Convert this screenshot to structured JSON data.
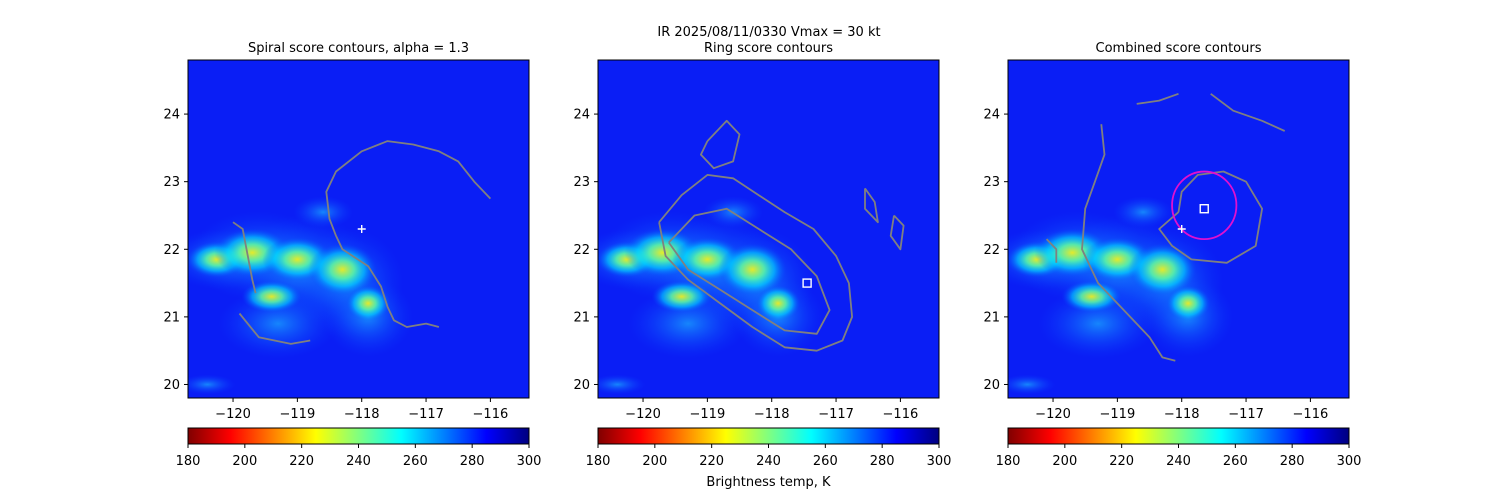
{
  "figure": {
    "suptitle_line1": "IR  2025/08/11/0330    Vmax = 30 kt",
    "colorbar_label": "Brightness temp, K"
  },
  "colormap": {
    "name": "jet_r",
    "stops": [
      "#800000",
      "#ff0000",
      "#ff8000",
      "#ffff00",
      "#80ff80",
      "#00ffff",
      "#0080ff",
      "#0000ff",
      "#000080"
    ]
  },
  "colors": {
    "background": "#0a1ef5",
    "contour": "#808080",
    "marker": "#ffffff",
    "ring": "#e010d0"
  },
  "chart_data": [
    {
      "type": "heatmap",
      "title": "Spiral score contours, alpha =  1.3",
      "xlim": [
        -120.7,
        -115.4
      ],
      "ylim": [
        19.8,
        24.8
      ],
      "xticks": [
        -120,
        -119,
        -118,
        -117,
        -116
      ],
      "yticks": [
        20,
        21,
        22,
        23,
        24
      ],
      "colorbar": {
        "range": [
          180,
          300
        ],
        "ticks": [
          180,
          200,
          220,
          240,
          260,
          280,
          300
        ]
      },
      "markers": [
        {
          "shape": "plus",
          "lon": -118.0,
          "lat": 22.3
        }
      ],
      "contours": [
        {
          "points": [
            [
              -118.4,
              22.2
            ],
            [
              -118.3,
              22.0
            ],
            [
              -117.9,
              21.75
            ],
            [
              -117.7,
              21.45
            ],
            [
              -117.6,
              21.15
            ],
            [
              -117.5,
              20.95
            ],
            [
              -117.3,
              20.85
            ],
            [
              -117.0,
              20.9
            ],
            [
              -116.8,
              20.85
            ]
          ]
        },
        {
          "points": [
            [
              -118.4,
              22.2
            ],
            [
              -118.5,
              22.45
            ],
            [
              -118.55,
              22.85
            ],
            [
              -118.4,
              23.15
            ],
            [
              -118.0,
              23.45
            ],
            [
              -117.6,
              23.6
            ],
            [
              -117.2,
              23.55
            ],
            [
              -116.8,
              23.45
            ],
            [
              -116.5,
              23.3
            ],
            [
              -116.25,
              23.0
            ],
            [
              -116.0,
              22.75
            ]
          ]
        },
        {
          "points": [
            [
              -120.0,
              22.4
            ],
            [
              -119.85,
              22.3
            ],
            [
              -119.8,
              22.05
            ],
            [
              -119.75,
              21.8
            ],
            [
              -119.7,
              21.55
            ],
            [
              -119.65,
              21.35
            ]
          ]
        },
        {
          "points": [
            [
              -119.9,
              21.05
            ],
            [
              -119.6,
              20.7
            ],
            [
              -119.1,
              20.6
            ],
            [
              -118.8,
              20.65
            ]
          ]
        }
      ]
    },
    {
      "type": "heatmap",
      "title": "Ring score contours",
      "xlim": [
        -120.7,
        -115.4
      ],
      "ylim": [
        19.8,
        24.8
      ],
      "xticks": [
        -120,
        -119,
        -118,
        -117,
        -116
      ],
      "yticks": [
        20,
        21,
        22,
        23,
        24
      ],
      "colorbar": {
        "range": [
          180,
          300
        ],
        "ticks": [
          180,
          200,
          220,
          240,
          260,
          280,
          300
        ]
      },
      "markers": [
        {
          "shape": "square",
          "lon": -117.45,
          "lat": 21.5
        }
      ],
      "contours": [
        {
          "points": [
            [
              -119.75,
              22.4
            ],
            [
              -119.4,
              22.8
            ],
            [
              -119.0,
              23.1
            ],
            [
              -118.6,
              23.05
            ],
            [
              -118.2,
              22.8
            ],
            [
              -117.8,
              22.55
            ],
            [
              -117.35,
              22.3
            ],
            [
              -117.0,
              21.9
            ],
            [
              -116.8,
              21.5
            ],
            [
              -116.75,
              21.0
            ],
            [
              -116.9,
              20.65
            ],
            [
              -117.3,
              20.5
            ],
            [
              -117.8,
              20.55
            ],
            [
              -118.3,
              20.85
            ],
            [
              -118.8,
              21.2
            ],
            [
              -119.3,
              21.55
            ],
            [
              -119.65,
              21.9
            ],
            [
              -119.75,
              22.4
            ]
          ]
        },
        {
          "points": [
            [
              -119.6,
              22.1
            ],
            [
              -119.2,
              22.5
            ],
            [
              -118.7,
              22.6
            ],
            [
              -118.2,
              22.3
            ],
            [
              -117.7,
              22.0
            ],
            [
              -117.3,
              21.6
            ],
            [
              -117.1,
              21.1
            ],
            [
              -117.3,
              20.75
            ],
            [
              -117.8,
              20.8
            ],
            [
              -118.3,
              21.1
            ],
            [
              -118.8,
              21.4
            ],
            [
              -119.3,
              21.7
            ],
            [
              -119.6,
              22.1
            ]
          ]
        },
        {
          "points": [
            [
              -119.0,
              23.6
            ],
            [
              -118.7,
              23.9
            ],
            [
              -118.5,
              23.7
            ],
            [
              -118.6,
              23.3
            ],
            [
              -118.9,
              23.2
            ],
            [
              -119.1,
              23.4
            ],
            [
              -119.0,
              23.6
            ]
          ]
        },
        {
          "points": [
            [
              -116.55,
              22.9
            ],
            [
              -116.4,
              22.7
            ],
            [
              -116.35,
              22.4
            ],
            [
              -116.55,
              22.6
            ],
            [
              -116.55,
              22.9
            ]
          ]
        },
        {
          "points": [
            [
              -116.1,
              22.5
            ],
            [
              -115.95,
              22.35
            ],
            [
              -116.0,
              22.0
            ],
            [
              -116.15,
              22.2
            ],
            [
              -116.1,
              22.5
            ]
          ]
        }
      ]
    },
    {
      "type": "heatmap",
      "title": "Combined score contours",
      "xlim": [
        -120.7,
        -115.4
      ],
      "ylim": [
        19.8,
        24.8
      ],
      "xticks": [
        -120,
        -119,
        -118,
        -117,
        -116
      ],
      "yticks": [
        20,
        21,
        22,
        23,
        24
      ],
      "colorbar": {
        "range": [
          180,
          300
        ],
        "ticks": [
          180,
          200,
          220,
          240,
          260,
          280,
          300
        ]
      },
      "markers": [
        {
          "shape": "plus",
          "lon": -118.0,
          "lat": 22.3
        },
        {
          "shape": "square",
          "lon": -117.65,
          "lat": 22.6
        }
      ],
      "ring": {
        "lon": -117.65,
        "lat": 22.65,
        "radius_deg": 0.5
      },
      "contours": [
        {
          "points": [
            [
              -118.05,
              22.55
            ],
            [
              -118.0,
              22.85
            ],
            [
              -117.75,
              23.1
            ],
            [
              -117.35,
              23.15
            ],
            [
              -117.0,
              23.0
            ],
            [
              -116.75,
              22.6
            ],
            [
              -116.85,
              22.05
            ],
            [
              -117.3,
              21.8
            ],
            [
              -117.85,
              21.85
            ],
            [
              -118.15,
              22.05
            ],
            [
              -118.35,
              22.3
            ],
            [
              -118.05,
              22.55
            ]
          ]
        },
        {
          "points": [
            [
              -119.25,
              23.85
            ],
            [
              -119.2,
              23.4
            ],
            [
              -119.35,
              23.0
            ],
            [
              -119.5,
              22.6
            ],
            [
              -119.55,
              22.0
            ],
            [
              -119.3,
              21.5
            ],
            [
              -118.9,
              21.1
            ],
            [
              -118.5,
              20.7
            ],
            [
              -118.3,
              20.4
            ],
            [
              -118.1,
              20.35
            ]
          ]
        },
        {
          "points": [
            [
              -118.7,
              24.15
            ],
            [
              -118.35,
              24.2
            ],
            [
              -118.05,
              24.3
            ]
          ]
        },
        {
          "points": [
            [
              -117.55,
              24.3
            ],
            [
              -117.2,
              24.05
            ],
            [
              -116.75,
              23.9
            ],
            [
              -116.4,
              23.75
            ]
          ]
        },
        {
          "points": [
            [
              -120.1,
              22.15
            ],
            [
              -119.95,
              22.0
            ],
            [
              -119.95,
              21.8
            ]
          ]
        }
      ]
    }
  ]
}
